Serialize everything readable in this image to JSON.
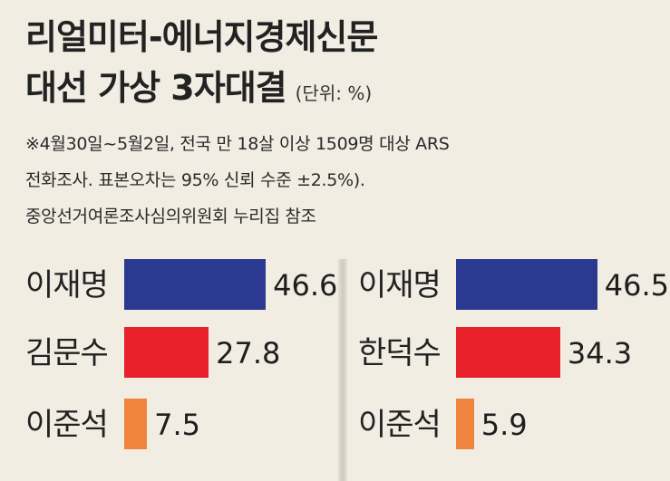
{
  "title_line1": "리얼미터-에너지경제신문",
  "title_line2": "대선 가상 3자대결",
  "unit": "(단위: %)",
  "notes": [
    "※4월30일~5월2일, 전국 만 18살 이상 1509명 대상 ARS",
    "전화조사. 표본오차는 95% 신뢰 수준 ±2.5%).",
    "중앙선거여론조사심의위원회 누리집 참조"
  ],
  "chart_data": [
    {
      "type": "bar",
      "orientation": "horizontal",
      "categories": [
        "이재명",
        "김문수",
        "이준석"
      ],
      "values": [
        46.6,
        27.8,
        7.5
      ],
      "colors": [
        "#2b3990",
        "#e8202a",
        "#f0843c"
      ]
    },
    {
      "type": "bar",
      "orientation": "horizontal",
      "categories": [
        "이재명",
        "한덕수",
        "이준석"
      ],
      "values": [
        46.5,
        34.3,
        5.9
      ],
      "colors": [
        "#2b3990",
        "#e8202a",
        "#f0843c"
      ]
    }
  ]
}
